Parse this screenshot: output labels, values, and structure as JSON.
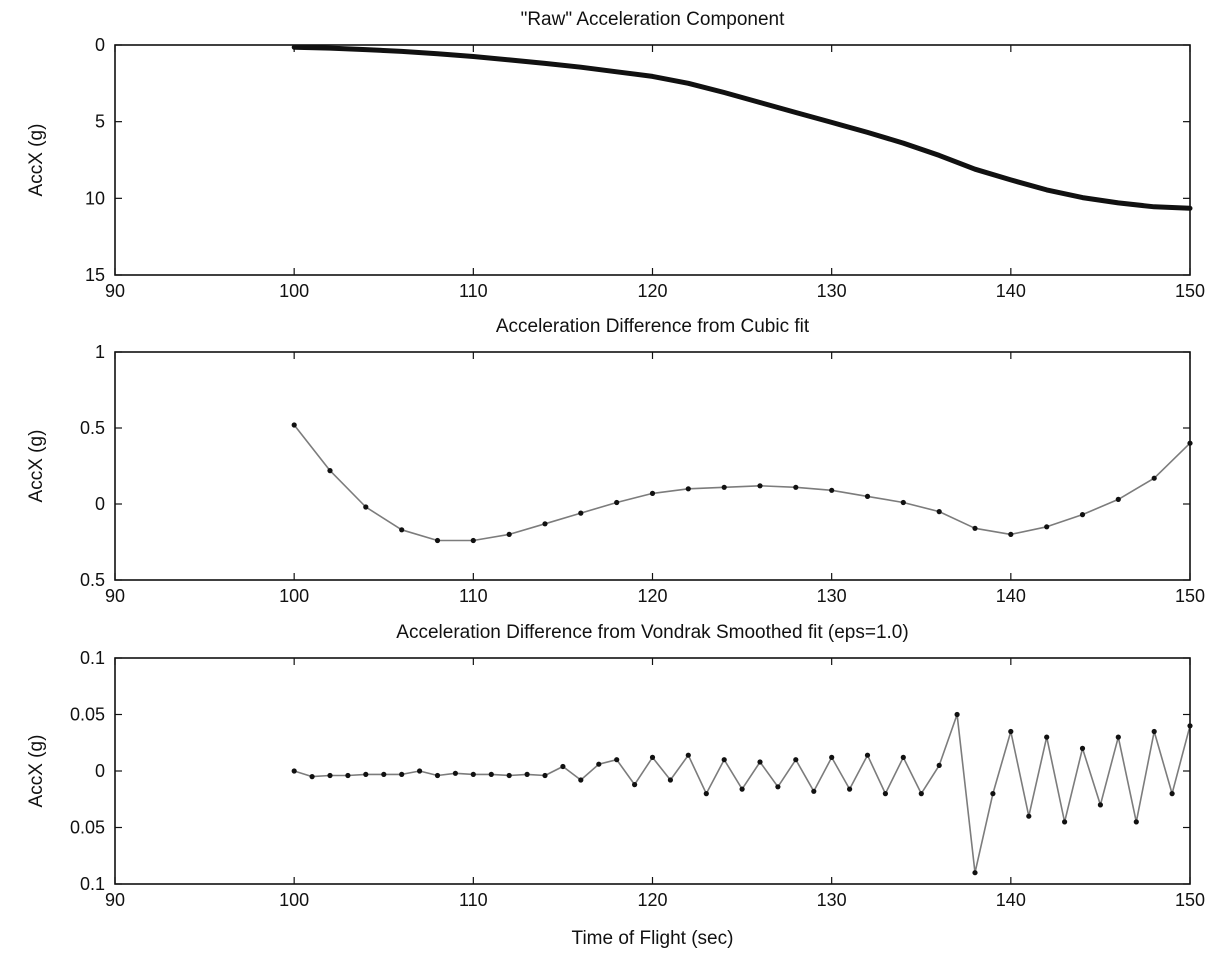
{
  "figure": {
    "ink_color": "#111111",
    "background": "#ffffff"
  },
  "chart_data": [
    {
      "type": "line",
      "title": "\"Raw\" Acceleration Component",
      "xlabel": "",
      "ylabel": "AccX (g)",
      "xlim": [
        90,
        150
      ],
      "ylim": [
        0,
        15
      ],
      "y_reversed": true,
      "grid": false,
      "legend": "none",
      "xticks": [
        90,
        100,
        110,
        120,
        130,
        140,
        150
      ],
      "xtick_labels": [
        "90",
        "100",
        "110",
        "120",
        "130",
        "140",
        "150"
      ],
      "yticks": [
        0,
        5,
        10,
        15
      ],
      "ytick_labels": [
        "0",
        "5",
        "10",
        "15"
      ],
      "series": [
        {
          "x": [
            100,
            102,
            104,
            106,
            108,
            110,
            112,
            114,
            116,
            118,
            120,
            122,
            124,
            126,
            128,
            130,
            132,
            134,
            136,
            138,
            140,
            142,
            144,
            146,
            148,
            150
          ],
          "values": [
            0.15,
            0.2,
            0.3,
            0.42,
            0.57,
            0.75,
            0.97,
            1.2,
            1.45,
            1.75,
            2.05,
            2.5,
            3.1,
            3.75,
            4.4,
            5.05,
            5.7,
            6.4,
            7.2,
            8.1,
            8.8,
            9.45,
            9.95,
            10.3,
            10.55,
            10.65
          ]
        }
      ]
    },
    {
      "type": "scatter",
      "title": "Acceleration Difference from Cubic fit",
      "xlabel": "",
      "ylabel": "AccX (g)",
      "xlim": [
        90,
        150
      ],
      "ylim": [
        -0.5,
        1
      ],
      "grid": false,
      "legend": "none",
      "xticks": [
        90,
        100,
        110,
        120,
        130,
        140,
        150
      ],
      "xtick_labels": [
        "90",
        "100",
        "110",
        "120",
        "130",
        "140",
        "150"
      ],
      "yticks": [
        1,
        0.5,
        0,
        -0.5
      ],
      "ytick_labels": [
        "1",
        "0.5",
        "0",
        "0.5"
      ],
      "series": [
        {
          "x": [
            100,
            102,
            104,
            106,
            108,
            110,
            112,
            114,
            116,
            118,
            120,
            122,
            124,
            126,
            128,
            130,
            132,
            134,
            136,
            138,
            140,
            142,
            144,
            146,
            148,
            150
          ],
          "values": [
            0.52,
            0.22,
            -0.02,
            -0.17,
            -0.24,
            -0.24,
            -0.2,
            -0.13,
            -0.06,
            0.01,
            0.07,
            0.1,
            0.11,
            0.12,
            0.11,
            0.09,
            0.05,
            0.01,
            -0.05,
            -0.16,
            -0.2,
            -0.15,
            -0.07,
            0.03,
            0.17,
            0.4
          ]
        }
      ]
    },
    {
      "type": "scatter",
      "title": "Acceleration Difference from Vondrak Smoothed fit (eps=1.0)",
      "xlabel": "Time of Flight (sec)",
      "ylabel": "AccX (g)",
      "xlim": [
        90,
        150
      ],
      "ylim": [
        -0.1,
        0.1
      ],
      "grid": false,
      "legend": "none",
      "xticks": [
        90,
        100,
        110,
        120,
        130,
        140,
        150
      ],
      "xtick_labels": [
        "90",
        "100",
        "110",
        "120",
        "130",
        "140",
        "150"
      ],
      "yticks": [
        0.1,
        0.05,
        0,
        -0.05,
        -0.1
      ],
      "ytick_labels": [
        "0.1",
        "0.05",
        "0",
        "0.05",
        "0.1"
      ],
      "series": [
        {
          "x": [
            100,
            101,
            102,
            103,
            104,
            105,
            106,
            107,
            108,
            109,
            110,
            111,
            112,
            113,
            114,
            115,
            116,
            117,
            118,
            119,
            120,
            121,
            122,
            123,
            124,
            125,
            126,
            127,
            128,
            129,
            130,
            131,
            132,
            133,
            134,
            135,
            136,
            137,
            138,
            139,
            140,
            141,
            142,
            143,
            144,
            145,
            146,
            147,
            148,
            149,
            150
          ],
          "values": [
            0.0,
            -0.005,
            -0.004,
            -0.004,
            -0.003,
            -0.003,
            -0.003,
            0.0,
            -0.004,
            -0.002,
            -0.003,
            -0.003,
            -0.004,
            -0.003,
            -0.004,
            0.004,
            -0.008,
            0.006,
            0.01,
            -0.012,
            0.012,
            -0.008,
            0.014,
            -0.02,
            0.01,
            -0.016,
            0.008,
            -0.014,
            0.01,
            -0.018,
            0.012,
            -0.016,
            0.014,
            -0.02,
            0.012,
            -0.02,
            0.005,
            0.05,
            -0.09,
            -0.02,
            0.035,
            -0.04,
            0.03,
            -0.045,
            0.02,
            -0.03,
            0.03,
            -0.045,
            0.035,
            -0.02,
            0.04
          ]
        }
      ]
    }
  ]
}
